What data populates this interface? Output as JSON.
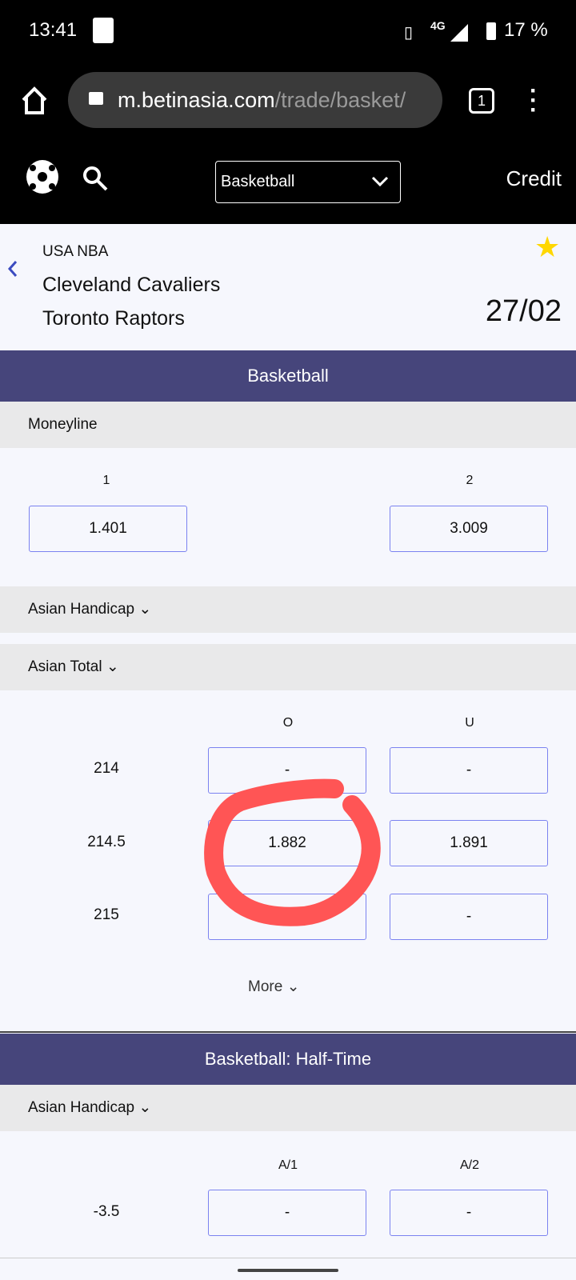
{
  "status_bar": {
    "time": "13:41",
    "network": "4G",
    "battery": "17 %"
  },
  "browser": {
    "url_domain": "m.betinasia.com",
    "url_path": "/trade/basket/",
    "tab_count": "1"
  },
  "site_header": {
    "sport_select": "Basketball",
    "credit": "Credit"
  },
  "match": {
    "league": "USA NBA",
    "home": "Cleveland Cavaliers",
    "away": "Toronto Raptors",
    "date": "27/02",
    "favorite": true
  },
  "sections": {
    "main_title": "Basketball",
    "moneyline": {
      "title": "Moneyline",
      "col1": "1",
      "col2": "2",
      "odds1": "1.401",
      "odds2": "3.009"
    },
    "asian_handicap": {
      "title": "Asian Handicap"
    },
    "asian_total": {
      "title": "Asian Total",
      "col_o": "O",
      "col_u": "U",
      "rows": [
        {
          "line": "214",
          "o": "-",
          "u": "-"
        },
        {
          "line": "214.5",
          "o": "1.882",
          "u": "1.891"
        },
        {
          "line": "215",
          "o": "",
          "u": "-"
        }
      ],
      "more": "More"
    },
    "half_title": "Basketball: Half-Time",
    "half_handicap": {
      "title": "Asian Handicap",
      "col1": "A/1",
      "col2": "A/2",
      "rows": [
        {
          "line": "-3.5",
          "a1": "-",
          "a2": "-"
        }
      ]
    }
  },
  "colors": {
    "band": "#46457b",
    "box_border": "#7b82f0",
    "annotation": "#ff5555",
    "star": "#ffd700"
  }
}
